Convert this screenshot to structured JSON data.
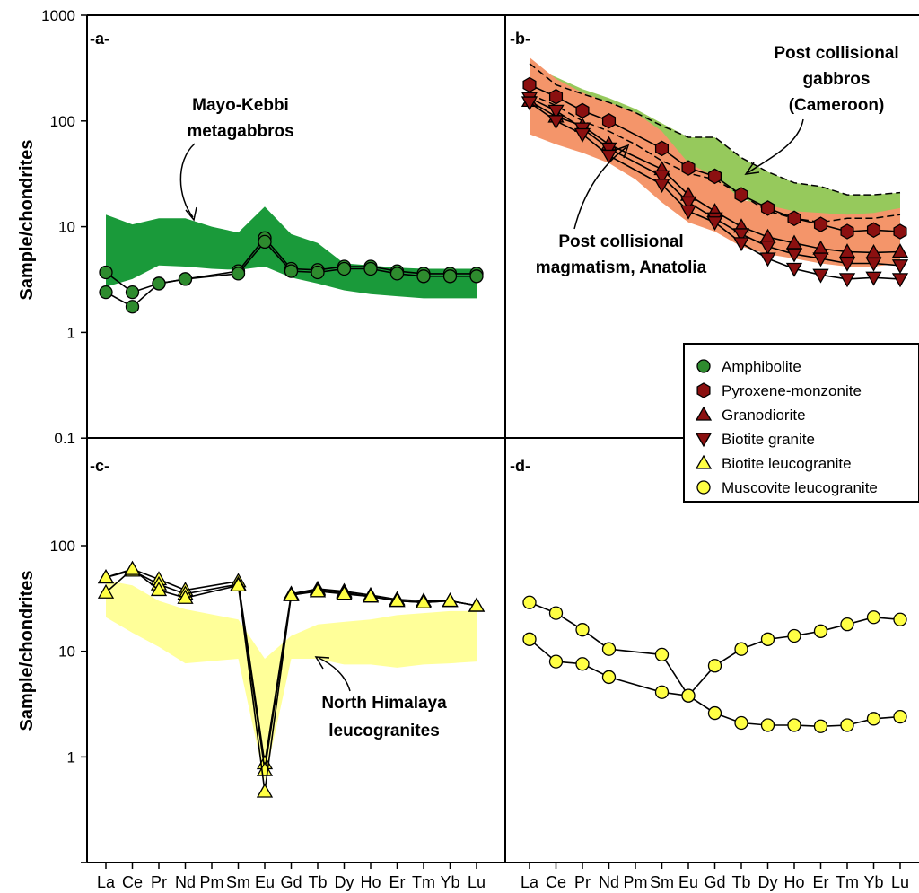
{
  "chart_data": {
    "type": "line",
    "ylabel": "Sample/chondrites",
    "yscale": "log",
    "ylim": [
      0.1,
      1000
    ],
    "yticks": [
      "1000",
      "100",
      "10",
      "1",
      "0.1"
    ],
    "yticks_lower": [
      "100",
      "10",
      "1",
      "0.1"
    ],
    "categories": [
      "La",
      "Ce",
      "Pr",
      "Nd",
      "Pm",
      "Sm",
      "Eu",
      "Gd",
      "Tb",
      "Dy",
      "Ho",
      "Er",
      "Tm",
      "Yb",
      "Lu"
    ],
    "legend": {
      "placement": "right, between panels b and d",
      "entries": [
        {
          "label": "Amphibolite",
          "marker": "circle",
          "color": "#2e8b2e"
        },
        {
          "label": "Pyroxene-monzonite",
          "marker": "hexagon",
          "color": "#8b1010"
        },
        {
          "label": "Granodiorite",
          "marker": "triangle-up",
          "color": "#8b1010"
        },
        {
          "label": "Biotite granite",
          "marker": "triangle-down",
          "color": "#8b1010"
        },
        {
          "label": "Biotite leucogranite",
          "marker": "triangle-up",
          "color": "#ffff44"
        },
        {
          "label": "Muscovite leucogranite",
          "marker": "circle",
          "color": "#ffff44"
        }
      ]
    },
    "panels": [
      {
        "label": "-a-",
        "annotations": [
          {
            "lines": [
              "Mayo-Kebbi",
              "metagabbros"
            ]
          }
        ],
        "fields": [
          {
            "color": "#1a9a3a",
            "upper": [
              13,
              10.5,
              12,
              12,
              10,
              8.8,
              15.5,
              8.5,
              7,
              4.5,
              4.3,
              4.1,
              4,
              4,
              4
            ],
            "lower": [
              2.7,
              3.2,
              4.3,
              4.2,
              4,
              3.9,
              4.2,
              3.3,
              2.9,
              2.5,
              2.3,
              2.2,
              2.1,
              2.1,
              2.1
            ]
          }
        ],
        "series": [
          {
            "marker": "circle",
            "fill": "#2e8b2e",
            "values": [
              3.7,
              2.4,
              2.9,
              3.2,
              null,
              3.8,
              7.8,
              4.0,
              3.9,
              4.2,
              4.2,
              3.8,
              3.6,
              3.6,
              3.6
            ]
          },
          {
            "marker": "circle",
            "fill": "#2e8b2e",
            "values": [
              2.4,
              1.75,
              2.9,
              3.2,
              null,
              3.6,
              7.2,
              3.8,
              3.7,
              4.0,
              4.0,
              3.6,
              3.4,
              3.4,
              3.4
            ]
          }
        ]
      },
      {
        "label": "-b-",
        "annotations": [
          {
            "lines": [
              "Post collisional",
              "gabbros",
              "(Cameroon)"
            ]
          },
          {
            "lines": [
              "Post collisional",
              "magmatism, Anatolia"
            ]
          }
        ],
        "fields": [
          {
            "color": "#8bc34a",
            "opacity": 0.9,
            "upper": [
              330,
              260,
              200,
              165,
              130,
              95,
              70,
              70,
              45,
              33,
              26,
              24,
              20,
              20,
              21
            ],
            "lower": [
              170,
              130,
              100,
              75,
              55,
              38,
              30,
              26,
              19,
              14,
              12,
              11,
              12,
              12,
              13
            ]
          },
          {
            "color": "#f4956a",
            "upper": [
              400,
              250,
              185,
              150,
              120,
              80,
              40,
              30,
              18,
              16,
              14,
              13.5,
              13,
              13.5,
              15
            ],
            "lower": [
              75,
              60,
              50,
              40,
              28,
              17,
              11,
              9,
              6.5,
              5.5,
              5,
              4.5,
              4.2,
              4.2,
              4.5
            ]
          }
        ],
        "envelope_lines": [
          [
            350,
            220,
            180,
            150,
            120,
            90,
            70,
            70,
            45,
            33,
            26,
            24,
            20,
            20,
            21
          ],
          [
            180,
            140,
            100,
            80,
            60,
            42,
            32,
            28,
            20,
            14,
            12,
            11,
            12,
            12,
            13
          ]
        ],
        "series": [
          {
            "marker": "hexagon",
            "fill": "#8b1010",
            "values": [
              220,
              170,
              125,
              100,
              null,
              55,
              36,
              30,
              20,
              15,
              12,
              10.5,
              9,
              9.3,
              9
            ]
          },
          {
            "marker": "triangle-up",
            "fill": "#8b1010",
            "values": [
              155,
              110,
              90,
              60,
              null,
              35,
              20,
              14,
              10,
              8,
              7,
              6.2,
              5.8,
              5.7,
              5.8
            ]
          },
          {
            "marker": "triangle-down",
            "fill": "#8b1010",
            "values": [
              165,
              125,
              85,
              55,
              null,
              30,
              17,
              12,
              8.5,
              6.5,
              5.5,
              5,
              4.5,
              4.5,
              4.3
            ]
          },
          {
            "marker": "triangle-down",
            "fill": "#8b1010",
            "values": [
              150,
              100,
              75,
              47,
              null,
              25,
              14,
              11,
              7,
              5,
              4,
              3.5,
              3.2,
              3.3,
              3.2
            ]
          }
        ]
      },
      {
        "label": "-c-",
        "annotations": [
          {
            "lines": [
              "North Himalaya",
              "leucogranites"
            ]
          }
        ],
        "fields": [
          {
            "color": "#ffff99",
            "upper": [
              47,
              42,
              30,
              25,
              null,
              20,
              8.5,
              14,
              18,
              19,
              20,
              22,
              23,
              24,
              24
            ],
            "lower": [
              21,
              15,
              11,
              7.7,
              null,
              8.5,
              0.6,
              8.5,
              8.5,
              7.5,
              7.5,
              7,
              7.5,
              7.7,
              8
            ]
          }
        ],
        "series": [
          {
            "marker": "triangle-up",
            "fill": "#ffff44",
            "values": [
              50,
              60,
              48,
              38,
              null,
              46,
              0.87,
              35,
              39,
              37,
              34,
              31,
              30,
              30,
              27
            ]
          },
          {
            "marker": "triangle-up",
            "fill": "#ffff44",
            "values": [
              50,
              58,
              43,
              35,
              null,
              43,
              0.75,
              34,
              38,
              36,
              33,
              30,
              29,
              30,
              27
            ]
          },
          {
            "marker": "triangle-up",
            "fill": "#ffff44",
            "values": [
              36,
              60,
              38,
              32,
              null,
              42,
              0.47,
              34,
              37,
              35,
              33,
              30,
              29,
              30,
              27
            ]
          }
        ]
      },
      {
        "label": "-d-",
        "annotations": [],
        "fields": [],
        "series": [
          {
            "marker": "circle",
            "fill": "#ffff44",
            "values": [
              29,
              23,
              16,
              10.5,
              null,
              9.3,
              3.8,
              7.3,
              10.5,
              13,
              14,
              15.5,
              18,
              21,
              20
            ]
          },
          {
            "marker": "circle",
            "fill": "#ffff44",
            "values": [
              13,
              8,
              7.6,
              5.7,
              null,
              4.1,
              3.8,
              2.6,
              2.1,
              2,
              2,
              1.95,
              2,
              2.3,
              2.4
            ]
          }
        ]
      }
    ]
  }
}
